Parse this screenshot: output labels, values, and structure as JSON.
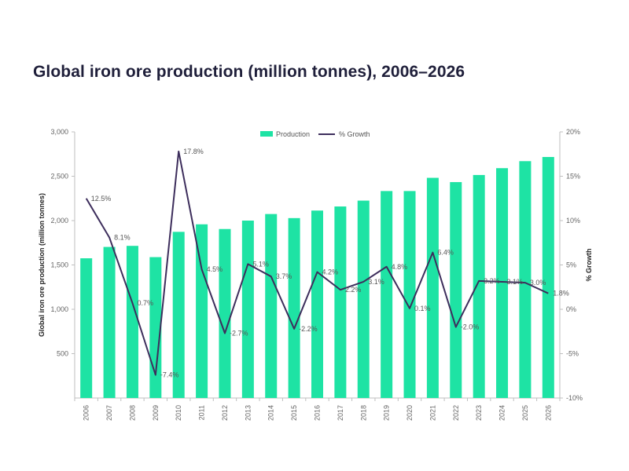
{
  "chart_data": {
    "type": "bar",
    "title": "Global iron ore production (million tonnes), 2006–2026",
    "categories": [
      "2006",
      "2007",
      "2008",
      "2009",
      "2010",
      "2011",
      "2012",
      "2013",
      "2014",
      "2015",
      "2016",
      "2017",
      "2018",
      "2019",
      "2020",
      "2021",
      "2022",
      "2023",
      "2024",
      "2025",
      "2026"
    ],
    "series": [
      {
        "name": "Production",
        "type": "bar",
        "axis": "left",
        "color": "#1ee3a4",
        "values": [
          1575,
          1703,
          1715,
          1588,
          1873,
          1958,
          1905,
          2000,
          2074,
          2028,
          2113,
          2159,
          2225,
          2333,
          2333,
          2482,
          2434,
          2514,
          2591,
          2670,
          2717
        ]
      },
      {
        "name": "% Growth",
        "type": "line",
        "axis": "right",
        "color": "#3d2e5c",
        "values": [
          12.5,
          8.1,
          0.7,
          -7.4,
          17.8,
          4.5,
          -2.7,
          5.1,
          3.7,
          -2.2,
          4.2,
          2.2,
          3.1,
          4.8,
          0.1,
          6.4,
          -2.0,
          3.2,
          3.1,
          3.0,
          1.8
        ],
        "labels": [
          "12.5%",
          "8.1%",
          "0.7%",
          "-7.4%",
          "17.8%",
          "4.5%",
          "-2.7%",
          "5.1%",
          "3.7%",
          "-2.2%",
          "4.2%",
          "2.2%",
          "3.1%",
          "4.8%",
          "0.1%",
          "6.4%",
          "-2.0%",
          "3.2%",
          "3.1%",
          "3.0%",
          "1.8%"
        ]
      }
    ],
    "ylabel": "Global iron ore production (million tonnes)",
    "y2label": "% Growth",
    "ylim": [
      0,
      3000
    ],
    "y2lim": [
      -10,
      20
    ],
    "yticks": [
      "500",
      "1,000",
      "1,500",
      "2,000",
      "2,500",
      "3,000"
    ],
    "ytick_values": [
      500,
      1000,
      1500,
      2000,
      2500,
      3000
    ],
    "y2ticks": [
      "-10%",
      "-5%",
      "0%",
      "5%",
      "10%",
      "15%",
      "20%"
    ],
    "y2tick_values": [
      -10,
      -5,
      0,
      5,
      10,
      15,
      20
    ],
    "legend_position": "top-center",
    "grid": false
  }
}
